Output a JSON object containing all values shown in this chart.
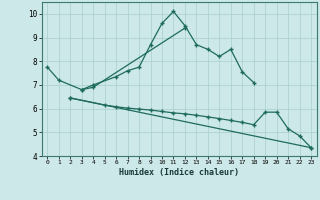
{
  "xlabel": "Humidex (Indice chaleur)",
  "background_color": "#cde8e8",
  "grid_color": "#a8cece",
  "line_color": "#1e6b5e",
  "xlim": [
    -0.5,
    23.5
  ],
  "ylim": [
    4,
    10.5
  ],
  "yticks": [
    4,
    5,
    6,
    7,
    8,
    9,
    10
  ],
  "xticks": [
    0,
    1,
    2,
    3,
    4,
    5,
    6,
    7,
    8,
    9,
    10,
    11,
    12,
    13,
    14,
    15,
    16,
    17,
    18,
    19,
    20,
    21,
    22,
    23
  ],
  "series": [
    {
      "x": [
        0,
        1,
        3,
        4,
        6,
        7,
        8,
        9,
        10,
        11,
        12,
        13,
        14,
        15,
        16,
        17,
        18
      ],
      "y": [
        7.75,
        7.2,
        6.8,
        7.0,
        7.35,
        7.6,
        7.75,
        8.7,
        9.6,
        10.1,
        9.5,
        8.7,
        8.5,
        8.2,
        8.5,
        7.55,
        7.1
      ]
    },
    {
      "x": [
        3,
        4,
        12
      ],
      "y": [
        6.8,
        6.9,
        9.4
      ]
    },
    {
      "x": [
        2,
        5,
        6,
        7,
        8,
        9,
        10,
        11,
        12,
        13,
        14,
        15,
        16,
        17,
        18,
        19,
        20,
        21,
        22,
        23
      ],
      "y": [
        6.45,
        6.15,
        6.08,
        6.02,
        5.98,
        5.94,
        5.88,
        5.82,
        5.78,
        5.72,
        5.65,
        5.58,
        5.5,
        5.42,
        5.32,
        5.85,
        5.85,
        5.15,
        4.85,
        4.35
      ]
    },
    {
      "x": [
        2,
        23
      ],
      "y": [
        6.45,
        4.35
      ]
    }
  ]
}
